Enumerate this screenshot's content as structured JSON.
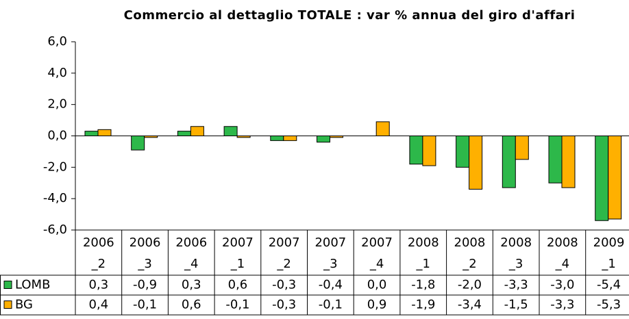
{
  "chart_data": {
    "type": "bar",
    "title": "Commercio al dettaglio TOTALE : var % annua del giro d'affari",
    "categories": [
      "2006_2",
      "2006_3",
      "2006_4",
      "2007_1",
      "2007_2",
      "2007_3",
      "2007_4",
      "2008_1",
      "2008_2",
      "2008_3",
      "2008_4",
      "2009_1"
    ],
    "series": [
      {
        "name": "LOMB",
        "color": "#2db84a",
        "values": [
          0.3,
          -0.9,
          0.3,
          0.6,
          -0.3,
          -0.4,
          0.0,
          -1.8,
          -2.0,
          -3.3,
          -3.0,
          -5.4
        ],
        "value_labels": [
          "0,3",
          "-0,9",
          "0,3",
          "0,6",
          "-0,3",
          "-0,4",
          "0,0",
          "-1,8",
          "-2,0",
          "-3,3",
          "-3,0",
          "-5,4"
        ]
      },
      {
        "name": "BG",
        "color": "#ffb000",
        "values": [
          0.4,
          -0.1,
          0.6,
          -0.1,
          -0.3,
          -0.1,
          0.9,
          -1.9,
          -3.4,
          -1.5,
          -3.3,
          -5.3
        ],
        "value_labels": [
          "0,4",
          "-0,1",
          "0,6",
          "-0,1",
          "-0,3",
          "-0,1",
          "0,9",
          "-1,9",
          "-3,4",
          "-1,5",
          "-3,3",
          "-5,3"
        ]
      }
    ],
    "ylim": [
      -6,
      6
    ],
    "yticks": [
      {
        "value": -6,
        "label": "-6,0"
      },
      {
        "value": -4,
        "label": "-4,0"
      },
      {
        "value": -2,
        "label": "-2,0"
      },
      {
        "value": 0,
        "label": "0,0"
      },
      {
        "value": 2,
        "label": "2,0"
      },
      {
        "value": 4,
        "label": "4,0"
      },
      {
        "value": 6,
        "label": "6,0"
      }
    ]
  }
}
